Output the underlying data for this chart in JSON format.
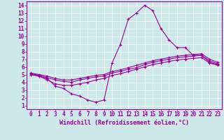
{
  "xlabel": "Windchill (Refroidissement éolien,°C)",
  "bg_color": "#cce8e8",
  "line_color": "#990099",
  "grid_color": "#ffffff",
  "xlim": [
    -0.5,
    23.5
  ],
  "ylim": [
    0.5,
    14.5
  ],
  "xticks": [
    0,
    1,
    2,
    3,
    4,
    5,
    6,
    7,
    8,
    9,
    10,
    11,
    12,
    13,
    14,
    15,
    16,
    17,
    18,
    19,
    20,
    21,
    22,
    23
  ],
  "yticks": [
    1,
    2,
    3,
    4,
    5,
    6,
    7,
    8,
    9,
    10,
    11,
    12,
    13,
    14
  ],
  "line1_x": [
    0,
    1,
    2,
    3,
    4,
    5,
    6,
    7,
    8,
    9,
    10,
    11,
    12,
    13,
    14,
    15,
    16,
    17,
    18,
    19,
    20,
    21,
    22,
    23
  ],
  "line1_y": [
    5.0,
    4.8,
    4.5,
    3.5,
    3.2,
    2.5,
    2.2,
    1.7,
    1.4,
    1.7,
    6.5,
    8.9,
    12.2,
    13.0,
    14.0,
    13.3,
    11.0,
    9.5,
    8.5,
    8.5,
    7.5,
    7.5,
    6.6,
    6.3
  ],
  "line2_x": [
    0,
    1,
    2,
    3,
    4,
    5,
    6,
    7,
    8,
    9,
    10,
    11,
    12,
    13,
    14,
    15,
    16,
    17,
    18,
    19,
    20,
    21,
    22,
    23
  ],
  "line2_y": [
    5.2,
    5.0,
    4.8,
    4.5,
    4.3,
    4.3,
    4.5,
    4.7,
    4.9,
    5.0,
    5.4,
    5.6,
    5.9,
    6.2,
    6.5,
    6.8,
    7.0,
    7.2,
    7.4,
    7.5,
    7.6,
    7.7,
    7.0,
    6.6
  ],
  "line3_x": [
    0,
    1,
    2,
    3,
    4,
    5,
    6,
    7,
    8,
    9,
    10,
    11,
    12,
    13,
    14,
    15,
    16,
    17,
    18,
    19,
    20,
    21,
    22,
    23
  ],
  "line3_y": [
    5.1,
    4.9,
    4.6,
    4.3,
    4.1,
    4.0,
    4.3,
    4.5,
    4.7,
    4.8,
    5.2,
    5.4,
    5.7,
    5.9,
    6.3,
    6.6,
    6.8,
    7.0,
    7.2,
    7.3,
    7.4,
    7.5,
    6.8,
    6.4
  ],
  "line4_x": [
    0,
    1,
    2,
    3,
    4,
    5,
    6,
    7,
    8,
    9,
    10,
    11,
    12,
    13,
    14,
    15,
    16,
    17,
    18,
    19,
    20,
    21,
    22,
    23
  ],
  "line4_y": [
    5.0,
    4.8,
    4.3,
    3.8,
    3.6,
    3.6,
    3.8,
    4.0,
    4.3,
    4.5,
    4.9,
    5.1,
    5.4,
    5.7,
    6.0,
    6.3,
    6.5,
    6.7,
    6.9,
    7.0,
    7.1,
    7.2,
    6.5,
    6.2
  ],
  "tick_fontsize": 5.5,
  "xlabel_fontsize": 6.0
}
